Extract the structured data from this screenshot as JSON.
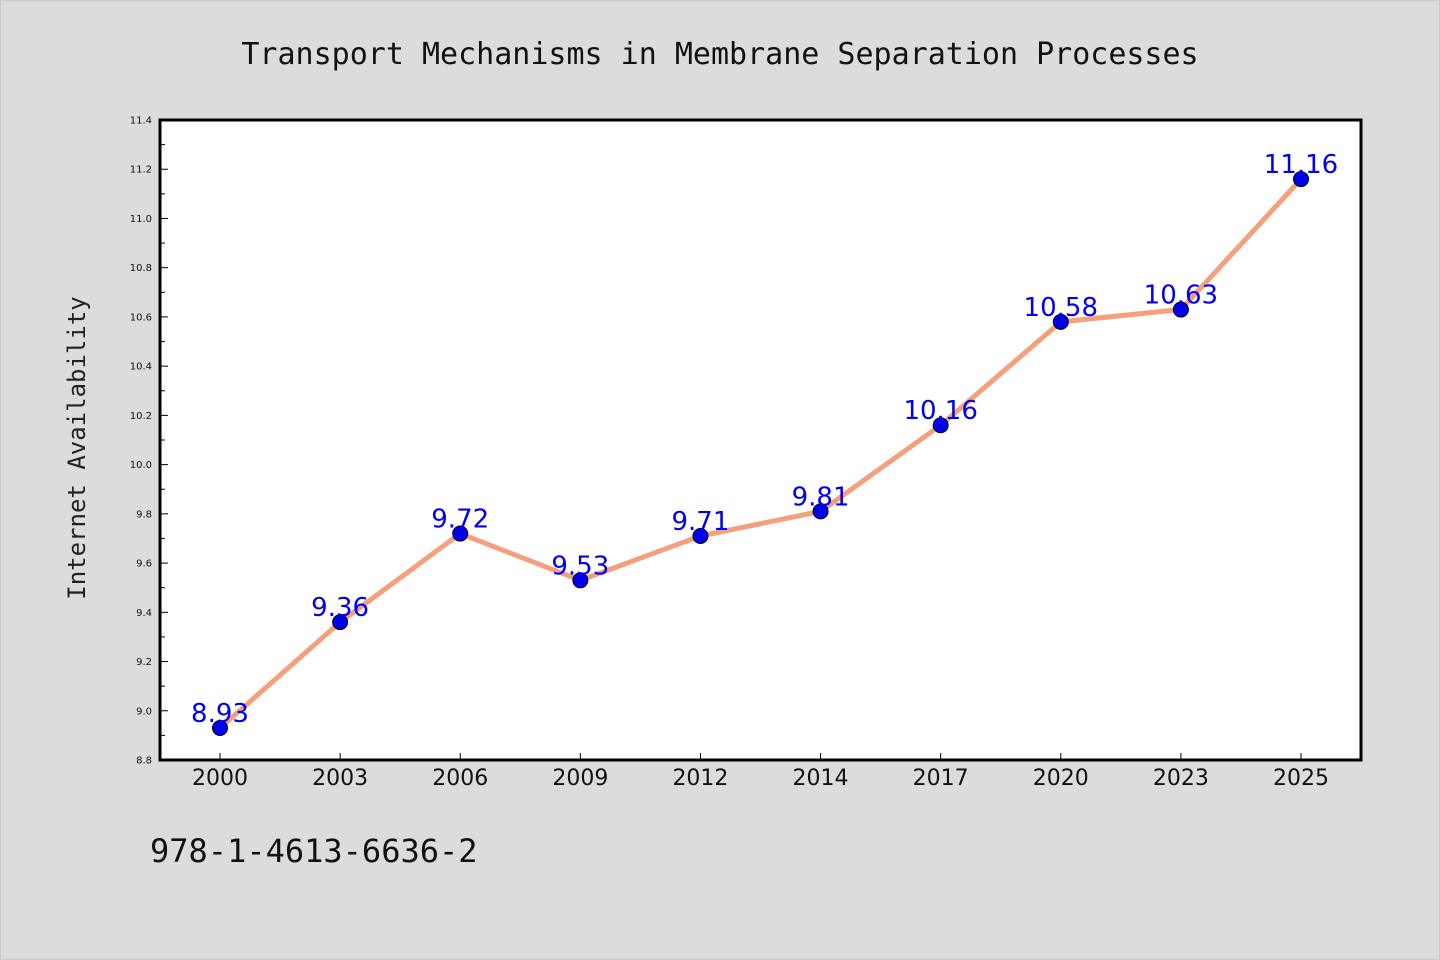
{
  "chart_data": {
    "type": "line",
    "title": "Transport Mechanisms in Membrane Separation Processes",
    "xlabel": "",
    "ylabel": "Internet Availability",
    "categories": [
      "2000",
      "2003",
      "2006",
      "2009",
      "2012",
      "2014",
      "2017",
      "2020",
      "2023",
      "2025"
    ],
    "values": [
      8.93,
      9.36,
      9.72,
      9.53,
      9.71,
      9.81,
      10.16,
      10.58,
      10.63,
      11.16
    ],
    "value_labels": [
      "8.93",
      "9.36",
      "9.72",
      "9.53",
      "9.71",
      "9.81",
      "10.16",
      "10.58",
      "10.63",
      "11.16"
    ],
    "ylim": [
      8.8,
      11.4
    ],
    "yticks": [
      "8.8",
      "9.0",
      "9.2",
      "9.4",
      "9.6",
      "9.8",
      "10.0",
      "10.2",
      "10.4",
      "10.6",
      "10.8",
      "11.0",
      "11.2",
      "11.4"
    ],
    "grid": false,
    "legend": "none",
    "colors": {
      "line": "#f4a07c",
      "marker": "#0000ee",
      "label": "#0000ee",
      "background": "#dcdcdc",
      "plot_background": "#ffffff"
    }
  },
  "footer": {
    "isbn": "978-1-4613-6636-2"
  }
}
